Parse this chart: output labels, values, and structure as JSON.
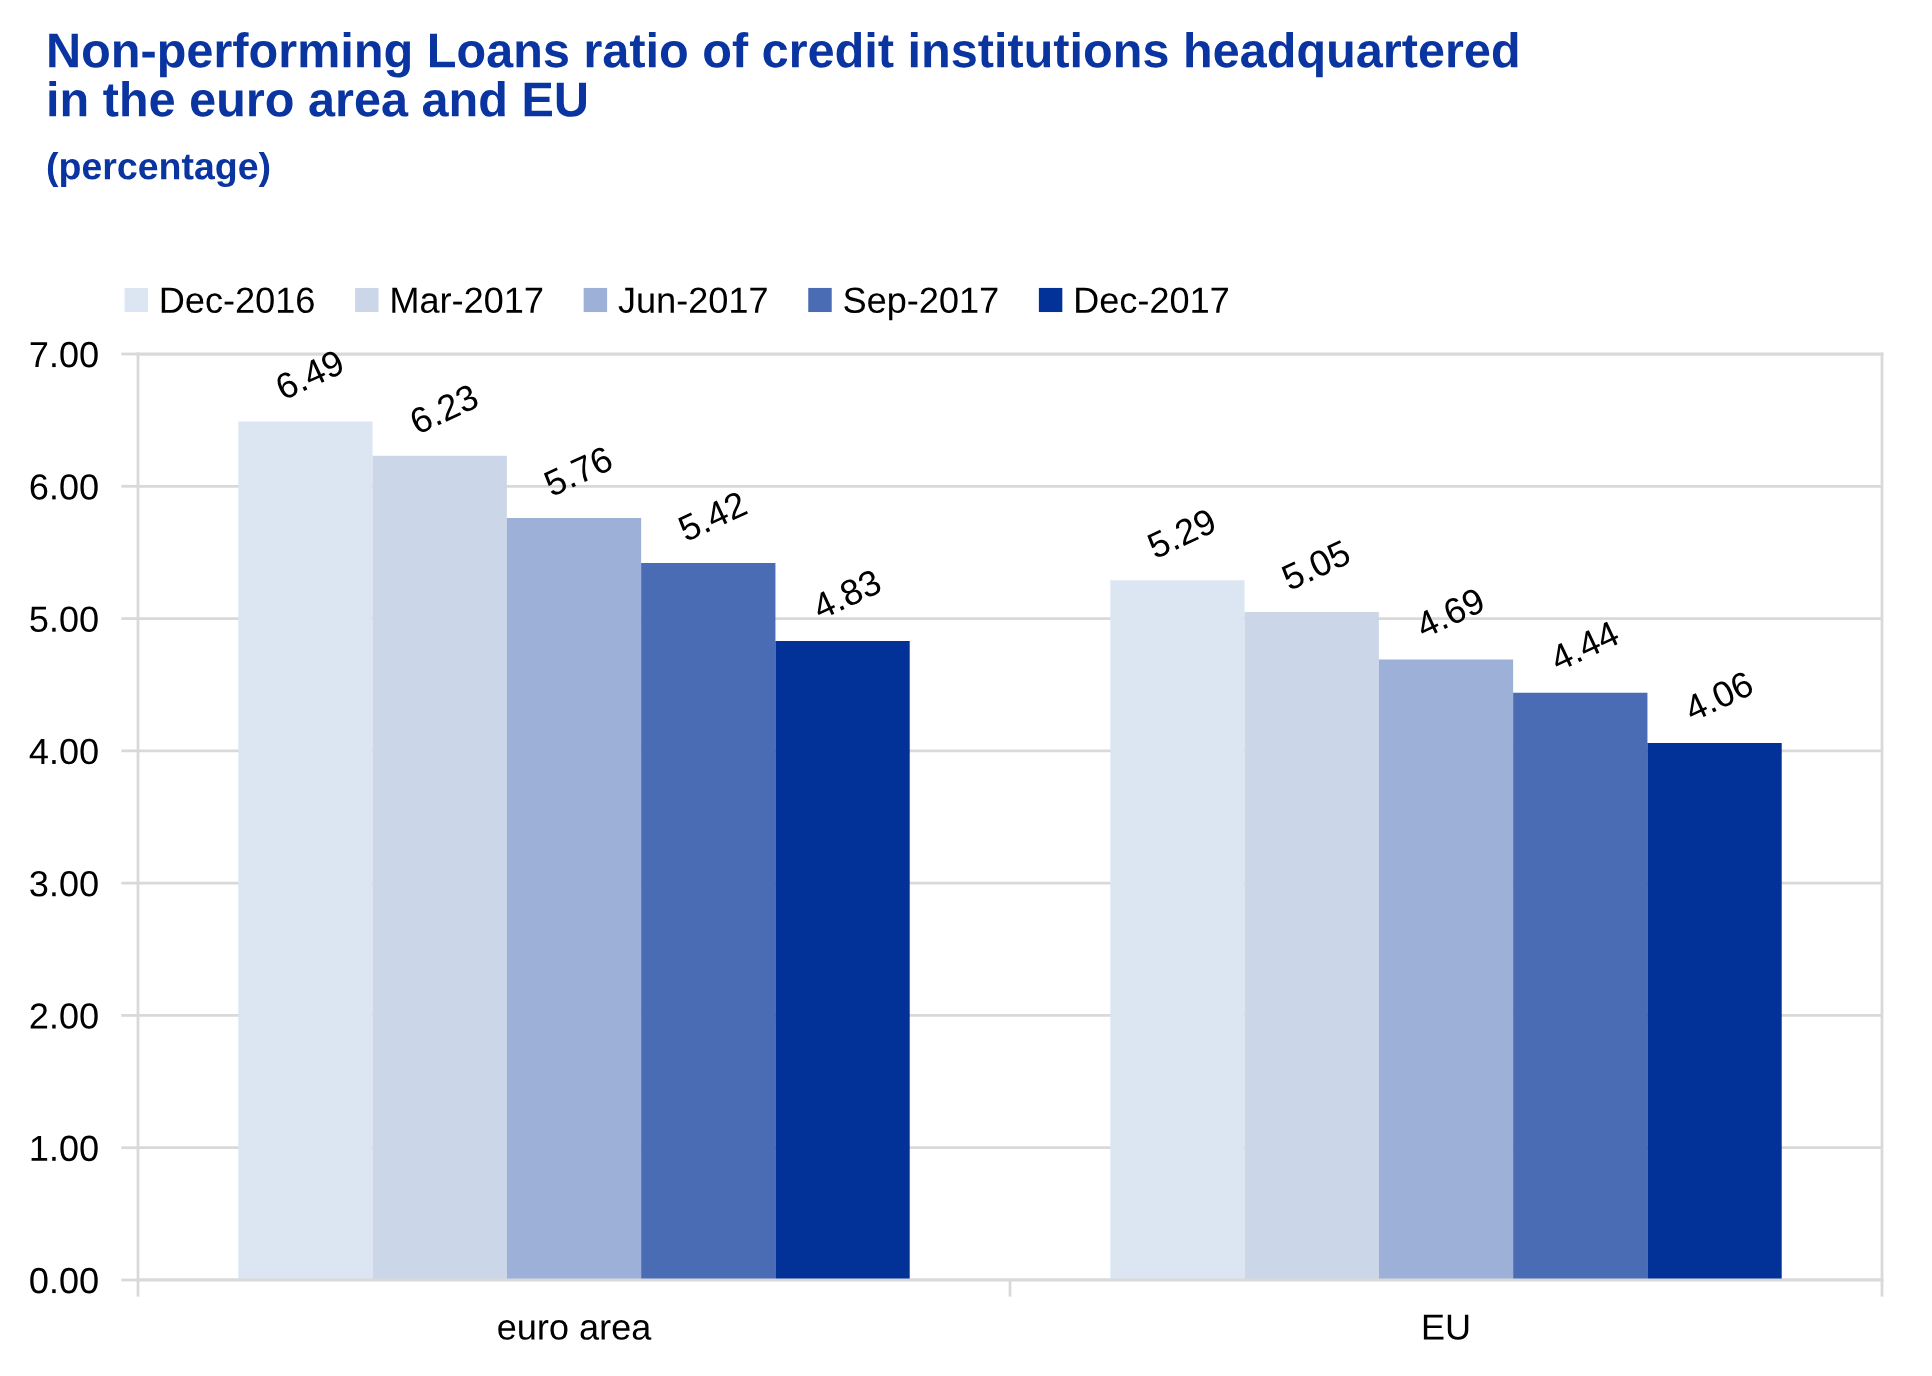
{
  "chart_data": {
    "type": "bar",
    "title": "Non-performing Loans ratio of credit institutions headquartered in the euro area and EU",
    "subtitle": "(percentage)",
    "categories": [
      "euro area",
      "EU"
    ],
    "series": [
      {
        "name": "Dec-2016",
        "color": "#dce6f2",
        "values": [
          6.49,
          5.29
        ]
      },
      {
        "name": "Mar-2017",
        "color": "#cbd7e8",
        "values": [
          6.23,
          5.05
        ]
      },
      {
        "name": "Jun-2017",
        "color": "#9db0d7",
        "values": [
          5.76,
          4.69
        ]
      },
      {
        "name": "Sep-2017",
        "color": "#4a6cb4",
        "values": [
          5.42,
          4.44
        ]
      },
      {
        "name": "Dec-2017",
        "color": "#023298",
        "values": [
          4.83,
          4.06
        ]
      }
    ],
    "ylim": [
      0,
      7
    ],
    "yticks": [
      {
        "value": 0,
        "label": "0.00"
      },
      {
        "value": 1,
        "label": "1.00"
      },
      {
        "value": 2,
        "label": "2.00"
      },
      {
        "value": 3,
        "label": "3.00"
      },
      {
        "value": 4,
        "label": "4.00"
      },
      {
        "value": 5,
        "label": "5.00"
      },
      {
        "value": 6,
        "label": "6.00"
      },
      {
        "value": 7,
        "label": "7.00"
      }
    ],
    "grid": "y",
    "legend": "top",
    "data_labels": true
  }
}
